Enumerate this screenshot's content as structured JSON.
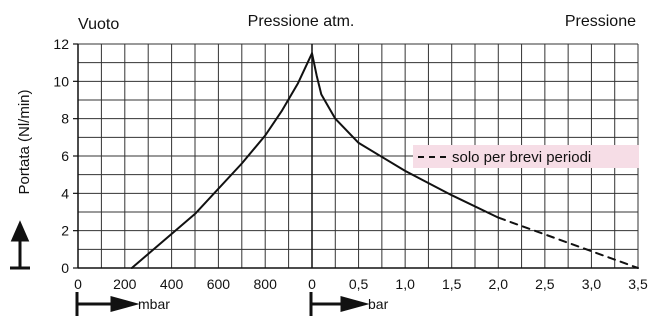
{
  "chart_data": {
    "type": "line",
    "title": "",
    "ylabel": "Portata (Nl/min)",
    "header_labels": {
      "left": "Vuoto",
      "center": "Pressione atm.",
      "right": "Pressione"
    },
    "y_ticks": [
      "0",
      "2",
      "4",
      "6",
      "8",
      "10",
      "12"
    ],
    "ylim": [
      0,
      12
    ],
    "grid": true,
    "x_axes": [
      {
        "name": "vacuum",
        "unit_label": "mbar",
        "ticks": [
          "0",
          "200",
          "400",
          "600",
          "800",
          "0"
        ],
        "xlim": [
          1000,
          0
        ]
      },
      {
        "name": "pressure",
        "unit_label": "bar",
        "ticks": [
          "0,5",
          "1,0",
          "1,5",
          "2,0",
          "2,5",
          "3,0",
          "3,5"
        ],
        "xlim": [
          0,
          3.5
        ]
      }
    ],
    "series": [
      {
        "axis": "vacuum",
        "style": "solid",
        "x": [
          230,
          500,
          700,
          800,
          870,
          940,
          1000
        ],
        "y": [
          0,
          2.9,
          5.6,
          7.1,
          8.4,
          9.9,
          11.5
        ]
      },
      {
        "axis": "pressure",
        "style": "solid",
        "x": [
          0,
          0.05,
          0.1,
          0.25,
          0.5,
          1.0,
          1.5,
          2.0
        ],
        "y": [
          11.5,
          10.3,
          9.3,
          8.0,
          6.7,
          5.2,
          3.9,
          2.7
        ]
      },
      {
        "name": "solo per brevi periodi",
        "axis": "pressure",
        "style": "dashed",
        "x": [
          2.0,
          3.5
        ],
        "y": [
          2.7,
          0
        ]
      }
    ],
    "legend": {
      "text": "solo per brevi periodi",
      "placement": "right",
      "background": "#f6dde6"
    },
    "colors": {
      "line": "#111111",
      "grid": "#333333",
      "legend_bg": "#f6dde6"
    }
  }
}
